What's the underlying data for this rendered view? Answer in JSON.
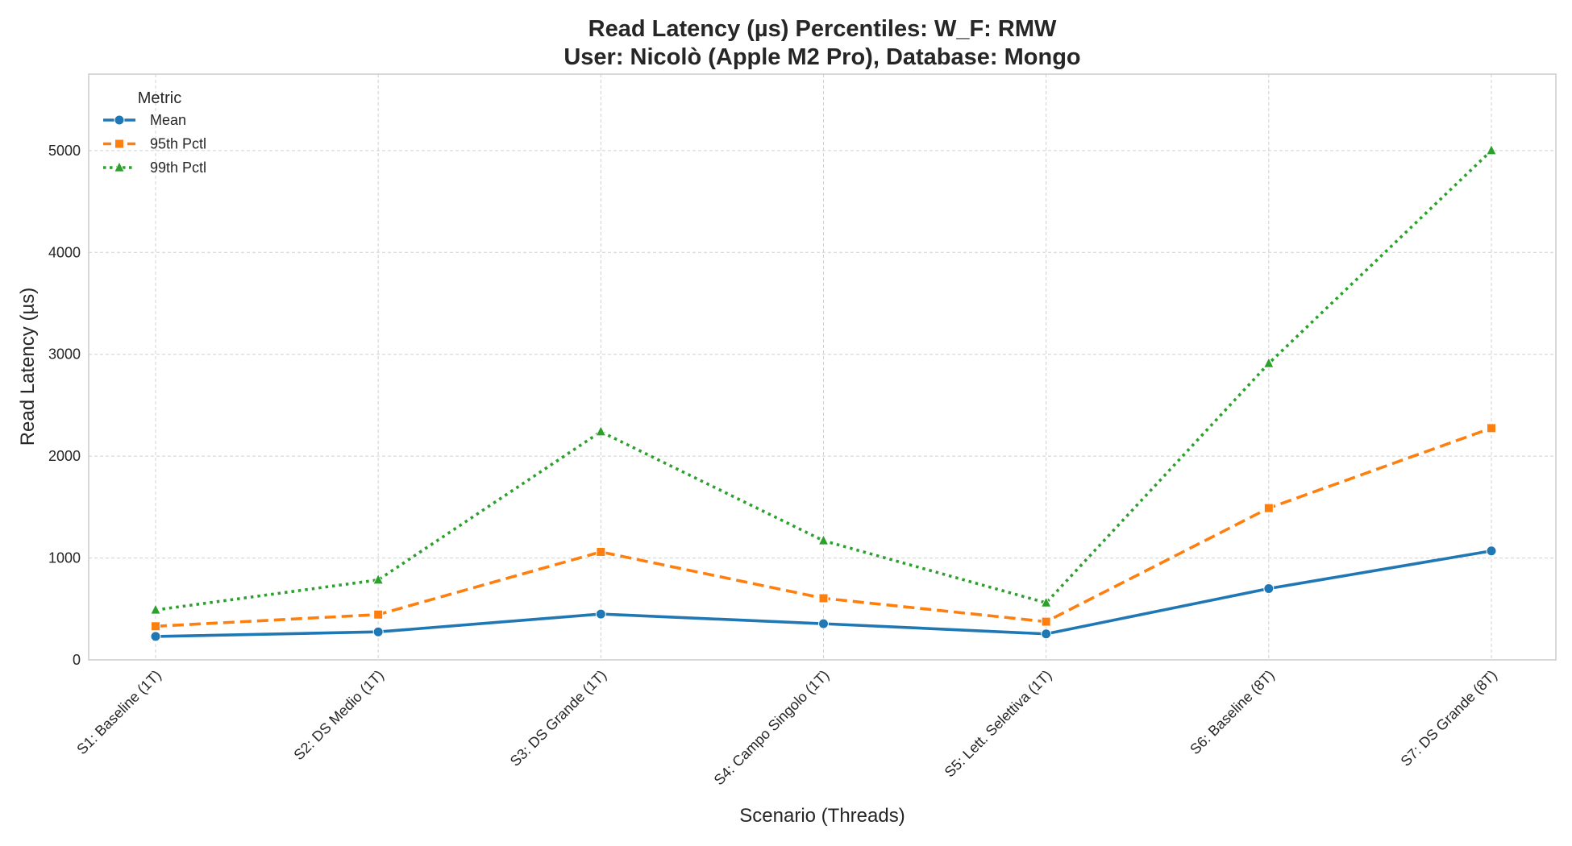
{
  "title_line1": "Read Latency (µs) Percentiles: W_F: RMW",
  "title_line2": "User: Nicolò (Apple M2 Pro), Database: Mongo",
  "chart_data": {
    "type": "line",
    "title": "Read Latency (µs) Percentiles: W_F: RMW\nUser: Nicolò (Apple M2 Pro), Database: Mongo",
    "xlabel": "Scenario (Threads)",
    "ylabel": "Read Latency (µs)",
    "categories": [
      "S1: Baseline (1T)",
      "S2: DS Medio (1T)",
      "S3: DS Grande (1T)",
      "S4: Campo Singolo (1T)",
      "S5: Lett. Selettiva (1T)",
      "S6: Baseline (8T)",
      "S7: DS Grande (8T)"
    ],
    "ylim": [
      0,
      5750
    ],
    "yticks": [
      0,
      1000,
      2000,
      3000,
      4000,
      5000
    ],
    "grid": true,
    "legend_title": "Metric",
    "legend_position": "top-left",
    "series": [
      {
        "name": "Mean",
        "color": "#1f77b4",
        "style": "solid",
        "marker": "circle",
        "values": [
          230,
          275,
          450,
          355,
          255,
          700,
          1070
        ]
      },
      {
        "name": "95th Pctl",
        "color": "#ff7f0e",
        "style": "dashed",
        "marker": "square",
        "values": [
          330,
          445,
          1060,
          605,
          375,
          1490,
          2275
        ]
      },
      {
        "name": "99th Pctl",
        "color": "#2ca02c",
        "style": "dotted",
        "marker": "triangle",
        "values": [
          490,
          785,
          2240,
          1170,
          560,
          2910,
          5000
        ]
      }
    ]
  }
}
